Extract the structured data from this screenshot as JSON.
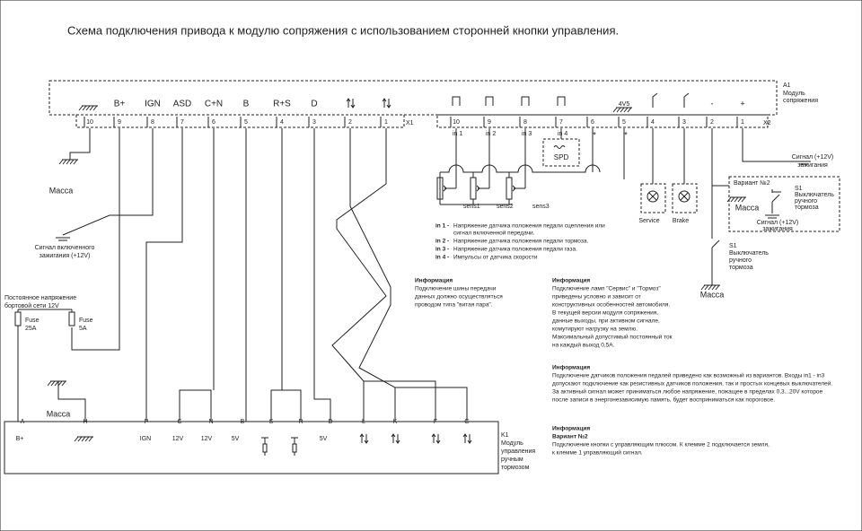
{
  "title": "Схема подключения привода к модулю сопряжения с использованием сторонней кнопки управления.",
  "module_a1": {
    "label": "A1",
    "name": [
      "Модуль",
      "сопряжения"
    ],
    "x1": {
      "label": "X1",
      "pins": [
        "10",
        "9",
        "8",
        "7",
        "6",
        "5",
        "4",
        "3",
        "2",
        "1"
      ],
      "signals": [
        "B+",
        "IGN",
        "ASD",
        "C+N",
        "B",
        "R+S",
        "D"
      ]
    },
    "x2": {
      "label": "X2",
      "pins": [
        "10",
        "9",
        "8",
        "7",
        "6",
        "5",
        "4",
        "3",
        "2",
        "1"
      ],
      "signals": [
        "4V5",
        "-",
        "+"
      ],
      "inputs": [
        "in 1",
        "in 2",
        "in 3",
        "in 4"
      ],
      "markers": [
        "*",
        "*"
      ]
    }
  },
  "left": {
    "ground": "Масса",
    "ignition": [
      "Сигнал включенного",
      "зажигания (+12V)"
    ],
    "supply": [
      "Постоянное напряжение",
      "бортовой сети 12V"
    ],
    "fuses": [
      {
        "name": "Fuse",
        "rating": "25A"
      },
      {
        "name": "Fuse",
        "rating": "5A"
      }
    ],
    "ground2": "Масса"
  },
  "sensors": [
    "sens1",
    "sens2",
    "sens3"
  ],
  "spd": "SPD",
  "lamps": [
    "Service",
    "Brake"
  ],
  "right": {
    "ignition": [
      "Сигнал (+12V)",
      "зажигания"
    ],
    "variant2": {
      "title": "Вариант №2",
      "ground": "Масса",
      "switch": [
        "S1",
        "Выключатель",
        "ручного",
        "тормоза"
      ],
      "signal": [
        "Сигнал (+12V)",
        "зажигания"
      ]
    },
    "switch": [
      "S1",
      "Выключатель",
      "ручного",
      "тормоза"
    ],
    "ground": "Масса"
  },
  "legend": [
    {
      "key": "in 1 -",
      "text": [
        "Напряжение датчика положения педали сцепления или",
        "сигнал включенной передачи."
      ]
    },
    {
      "key": "in 2 -",
      "text": [
        "Напряжение датчика положения педали тормоза."
      ]
    },
    {
      "key": "in 3 -",
      "text": [
        "Напряжение датчика положения педали газа."
      ]
    },
    {
      "key": "in 4 -",
      "text": [
        "Импульсы от датчика скорости"
      ]
    }
  ],
  "info": [
    {
      "title": "Информация",
      "lines": [
        "Подключение шины передачи",
        "данных должно осуществляться",
        "проводом типа \"витая пара\"."
      ]
    },
    {
      "title": "Информация",
      "lines": [
        "Подключение ламп \"Сервис\" и \"Тормоз\"",
        "приведены условно и зависит от",
        "конструктивных особенностей автомобиля.",
        "В текущей версии модуля сопряжения,",
        "данные выходы, при активном сигнале,",
        "комутируют нагрузку на землю.",
        "Максимальный допустимый постоянный ток",
        "на каждый выход 0,5А."
      ]
    },
    {
      "title": "Информация",
      "lines": [
        "Подключение датчиков положения педалей приведено как возможный из вариантов. Входы in1 - in3",
        "допускают подключение как резистивных датчиков положения, так и простых концевых выключателей.",
        "За активный сигнал может приниматься любое напряжение, пожащее в пределах 0,3...20V которое",
        "после записи в энергонезависимую память, будет восприниматься как пороговое."
      ]
    },
    {
      "title": "Информация",
      "subtitle": "Вариант №2",
      "lines": [
        "Подключение кнопки с управляющим плюсом. К клемме 2 подключается земля,",
        "к клемме 1 управляющий сигнал."
      ]
    }
  ],
  "module_k1": {
    "label": "K1",
    "name": [
      "Модуль",
      "управления",
      "ручным",
      "тормозом"
    ],
    "pins": [
      "A",
      "H",
      "P",
      "C",
      "N",
      "B",
      "S",
      "R",
      "D",
      "L",
      "K",
      "F",
      "G"
    ],
    "pin_labels": [
      "B+",
      "IGN",
      "12V",
      "12V",
      "5V",
      "5V"
    ]
  }
}
